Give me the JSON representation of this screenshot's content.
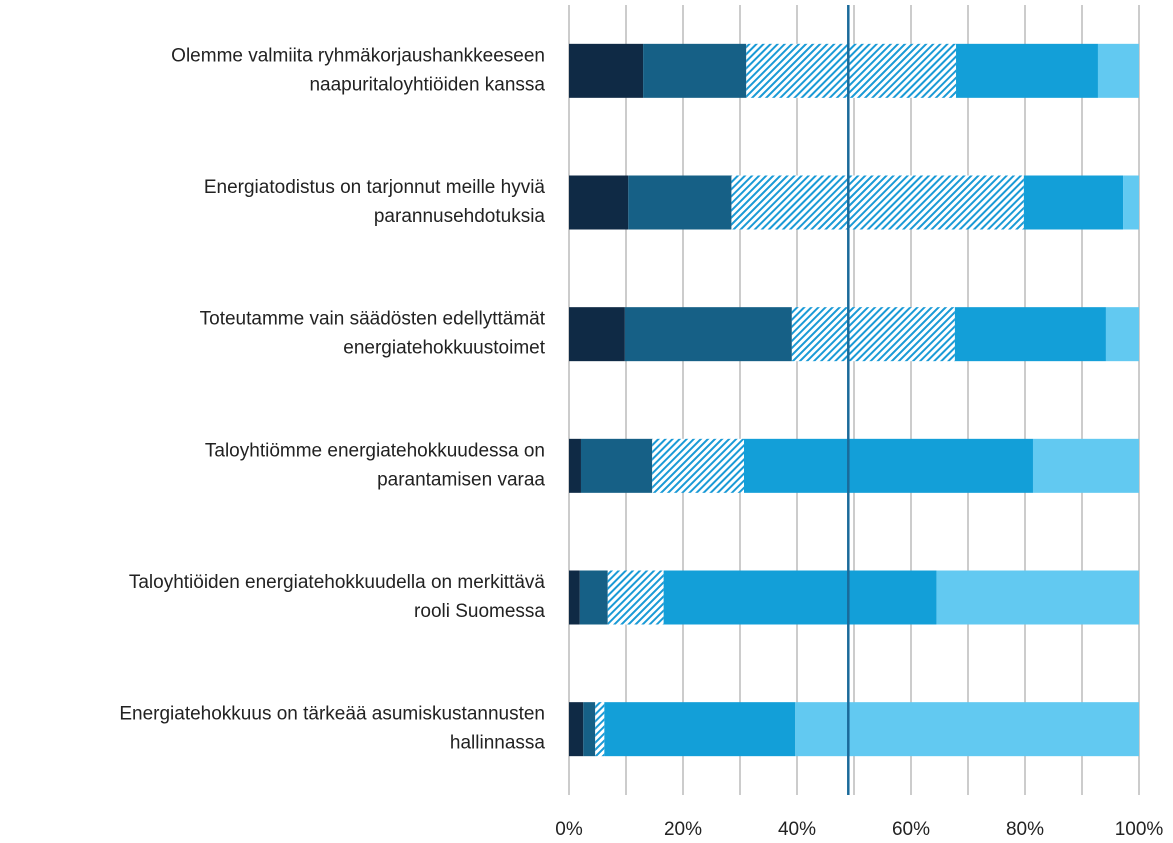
{
  "chart_data": {
    "type": "stacked-bar-horizontal",
    "categories": [
      [
        "Olemme valmiita ryhmäkorjaushankkeeseen",
        "naapuritaloyhtiöiden kanssa"
      ],
      [
        "Energiatodistus on tarjonnut meille hyviä",
        "parannusehdotuksia"
      ],
      [
        "Toteutamme vain säädösten edellyttämät",
        "energiatehokkuustoimet"
      ],
      [
        "Taloyhtiömme energiatehokkuudessa on",
        "parantamisen varaa"
      ],
      [
        "Taloyhtiöiden energiatehokkuudella on merkittävä",
        "rooli Suomessa"
      ],
      [
        "Energiatehokkuus on tärkeää asumiskustannusten",
        "hallinnassa"
      ]
    ],
    "series": [
      {
        "color": "#0f2a45",
        "values": [
          13.0,
          10.4,
          9.8,
          2.1,
          1.9,
          2.5
        ]
      },
      {
        "color": "#166086",
        "values": [
          18.1,
          18.1,
          29.3,
          12.5,
          4.9,
          2.1
        ]
      },
      {
        "color": "#1a9ad6",
        "hatched": true,
        "values": [
          36.8,
          51.3,
          28.6,
          16.1,
          9.8,
          1.6
        ]
      },
      {
        "color": "#139fd8",
        "values": [
          24.9,
          17.4,
          26.5,
          50.7,
          47.9,
          33.5
        ]
      },
      {
        "color": "#62c9f1",
        "values": [
          7.2,
          2.8,
          5.8,
          18.6,
          35.5,
          60.3
        ]
      }
    ],
    "xlim": [
      0,
      100
    ],
    "xticks": [
      {
        "value": 0,
        "label": "0%"
      },
      {
        "value": 20,
        "label": "20%"
      },
      {
        "value": 40,
        "label": "40%"
      },
      {
        "value": 60,
        "label": "60%"
      },
      {
        "value": 80,
        "label": "80%"
      },
      {
        "value": 100,
        "label": "100%"
      }
    ],
    "minor_xticks": [
      10,
      30,
      50,
      70,
      90
    ],
    "grid": true,
    "reference_line": {
      "value": 49,
      "color": "#1a6a9a"
    }
  }
}
